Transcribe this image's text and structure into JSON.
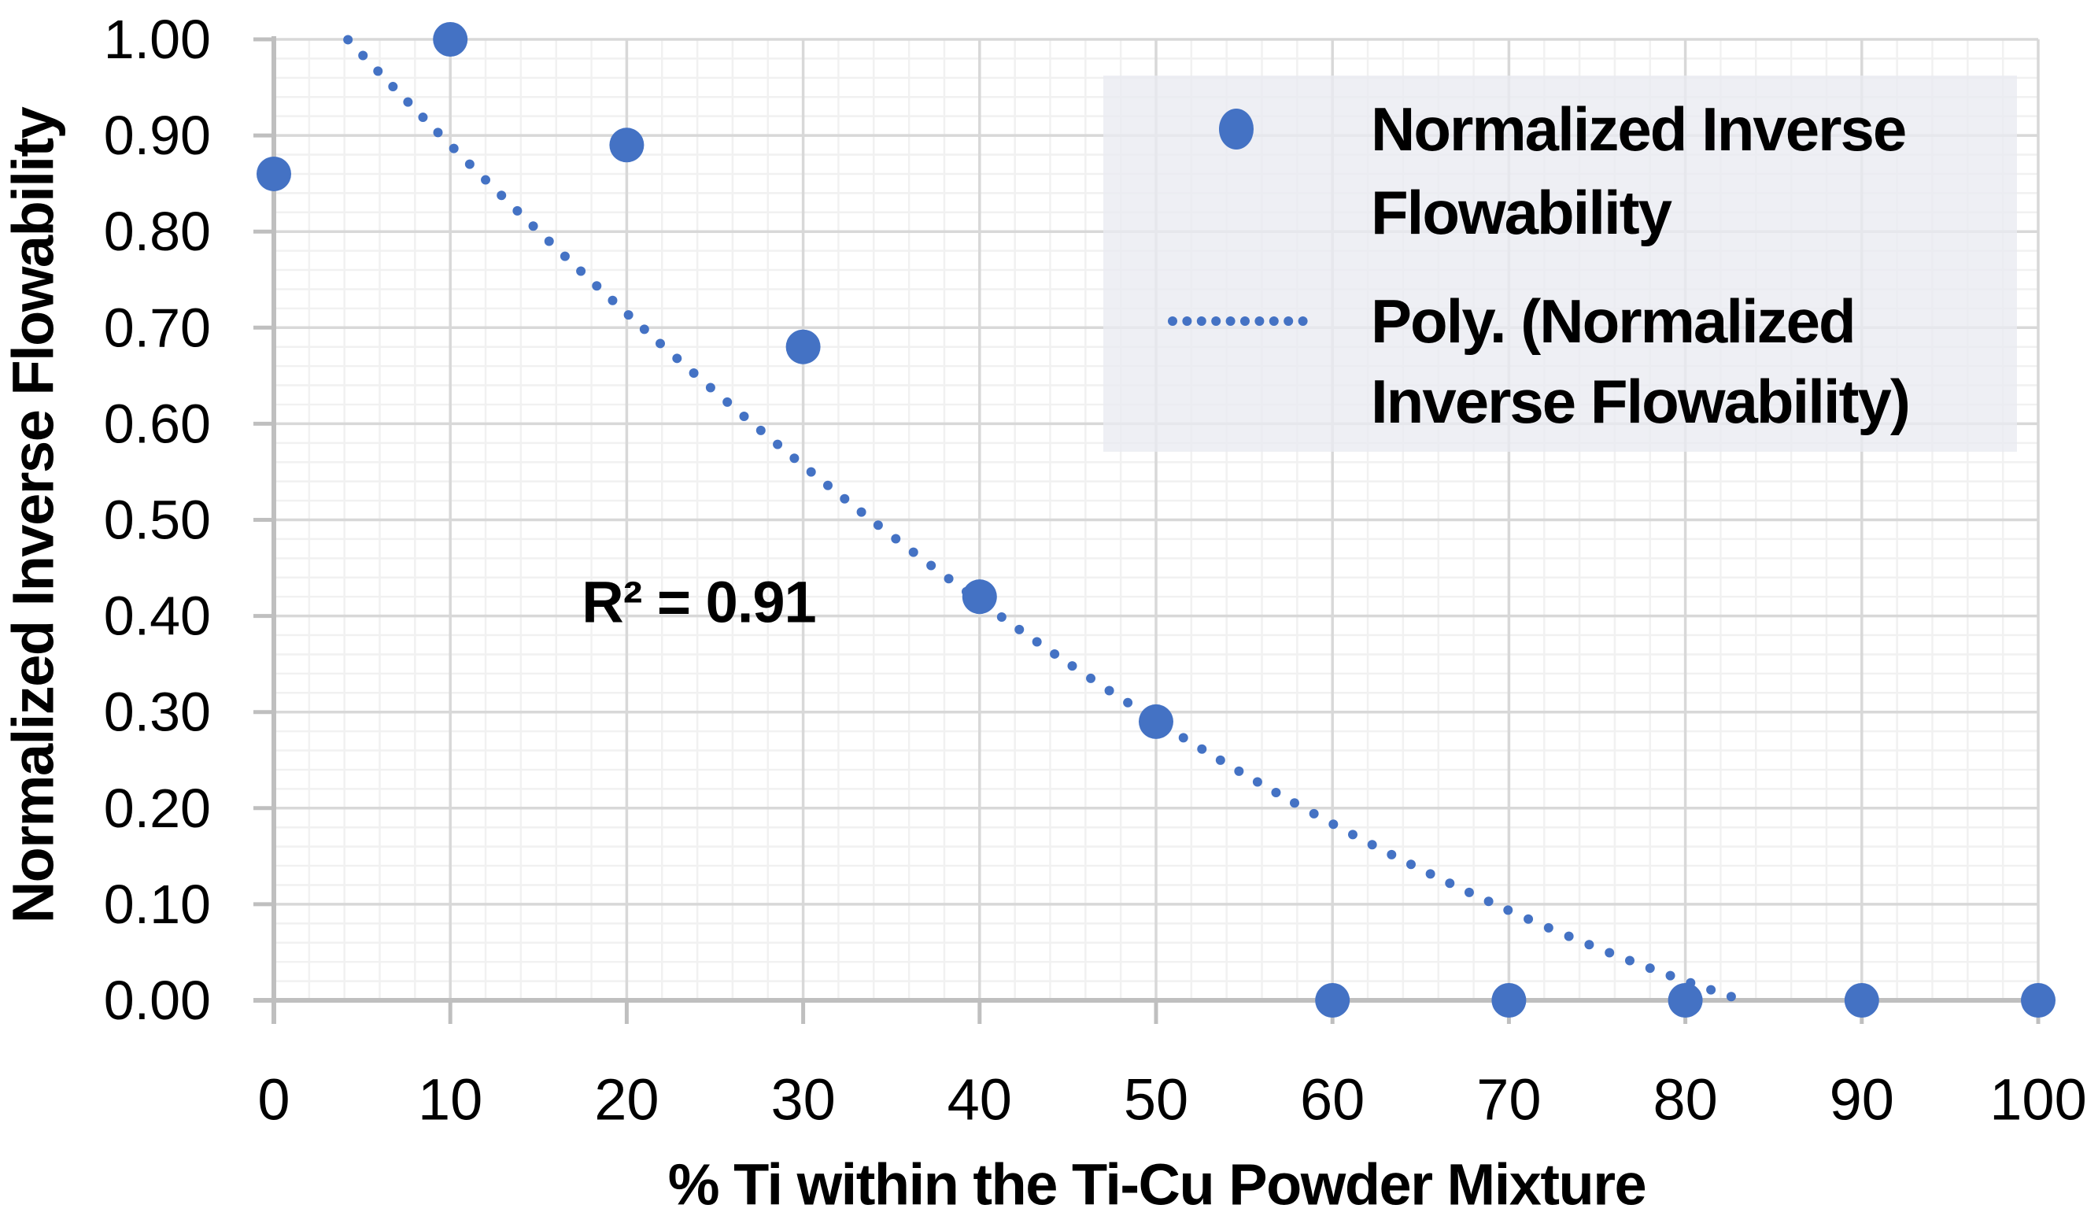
{
  "chart_data": {
    "type": "scatter",
    "title": "",
    "xlabel": "% Ti within the Ti-Cu Powder Mixture",
    "ylabel": "Normalized Inverse Flowability",
    "x": [
      0,
      10,
      20,
      30,
      40,
      50,
      60,
      70,
      80,
      90,
      100
    ],
    "series": [
      {
        "name": "Normalized Inverse Flowability",
        "values": [
          0.86,
          1.0,
          0.89,
          0.68,
          0.42,
          0.29,
          0.0,
          0.0,
          0.0,
          0.0,
          0.0
        ]
      }
    ],
    "trendline": {
      "name": "Poly. (Normalized Inverse Flowability)",
      "type": "polynomial",
      "order": 2,
      "coefficients": {
        "a": 8.5e-05,
        "b": -0.020079,
        "c": 1.08247
      },
      "r_squared_label": "R² = 0.91",
      "x_visible_start": 4.2,
      "x_visible_end": 83.3,
      "style": "dotted"
    },
    "xlim": [
      0,
      100
    ],
    "ylim": [
      0,
      1
    ],
    "x_major_step": 10,
    "y_major_step": 0.1,
    "x_minor_step": 2,
    "y_minor_step": 0.02,
    "grid": "major+minor",
    "x_ticks": [
      {
        "value": 0,
        "label": "0"
      },
      {
        "value": 10,
        "label": "10"
      },
      {
        "value": 20,
        "label": "20"
      },
      {
        "value": 30,
        "label": "30"
      },
      {
        "value": 40,
        "label": "40"
      },
      {
        "value": 50,
        "label": "50"
      },
      {
        "value": 60,
        "label": "60"
      },
      {
        "value": 70,
        "label": "70"
      },
      {
        "value": 80,
        "label": "80"
      },
      {
        "value": 90,
        "label": "90"
      },
      {
        "value": 100,
        "label": "100"
      }
    ],
    "y_ticks": [
      {
        "value": 1.0,
        "label": "1.00"
      },
      {
        "value": 0.9,
        "label": "0.90"
      },
      {
        "value": 0.8,
        "label": "0.80"
      },
      {
        "value": 0.7,
        "label": "0.70"
      },
      {
        "value": 0.6,
        "label": "0.60"
      },
      {
        "value": 0.5,
        "label": "0.50"
      },
      {
        "value": 0.4,
        "label": "0.40"
      },
      {
        "value": 0.3,
        "label": "0.30"
      },
      {
        "value": 0.2,
        "label": "0.20"
      },
      {
        "value": 0.1,
        "label": "0.10"
      },
      {
        "value": 0.0,
        "label": "0.00"
      }
    ],
    "legend_position": "top-right",
    "legend": [
      {
        "label": "Normalized Inverse Flowability",
        "marker": "dot",
        "wrapped_lines": [
          "Normalized Inverse",
          "Flowability"
        ]
      },
      {
        "label": "Poly. (Normalized Inverse Flowability)",
        "marker": "dotted-line",
        "wrapped_lines": [
          "Poly. (Normalized",
          "Inverse Flowability)"
        ]
      }
    ],
    "colors": {
      "series_blue": "#4472C4",
      "major_grid": "#D8D8D8",
      "minor_grid": "#F1F1F1",
      "axis_line": "#BFBFBF",
      "legend_bg": "#E9EBF1",
      "text": "#000000"
    }
  },
  "annotation": {
    "r_squared": "R² = 0.91"
  }
}
